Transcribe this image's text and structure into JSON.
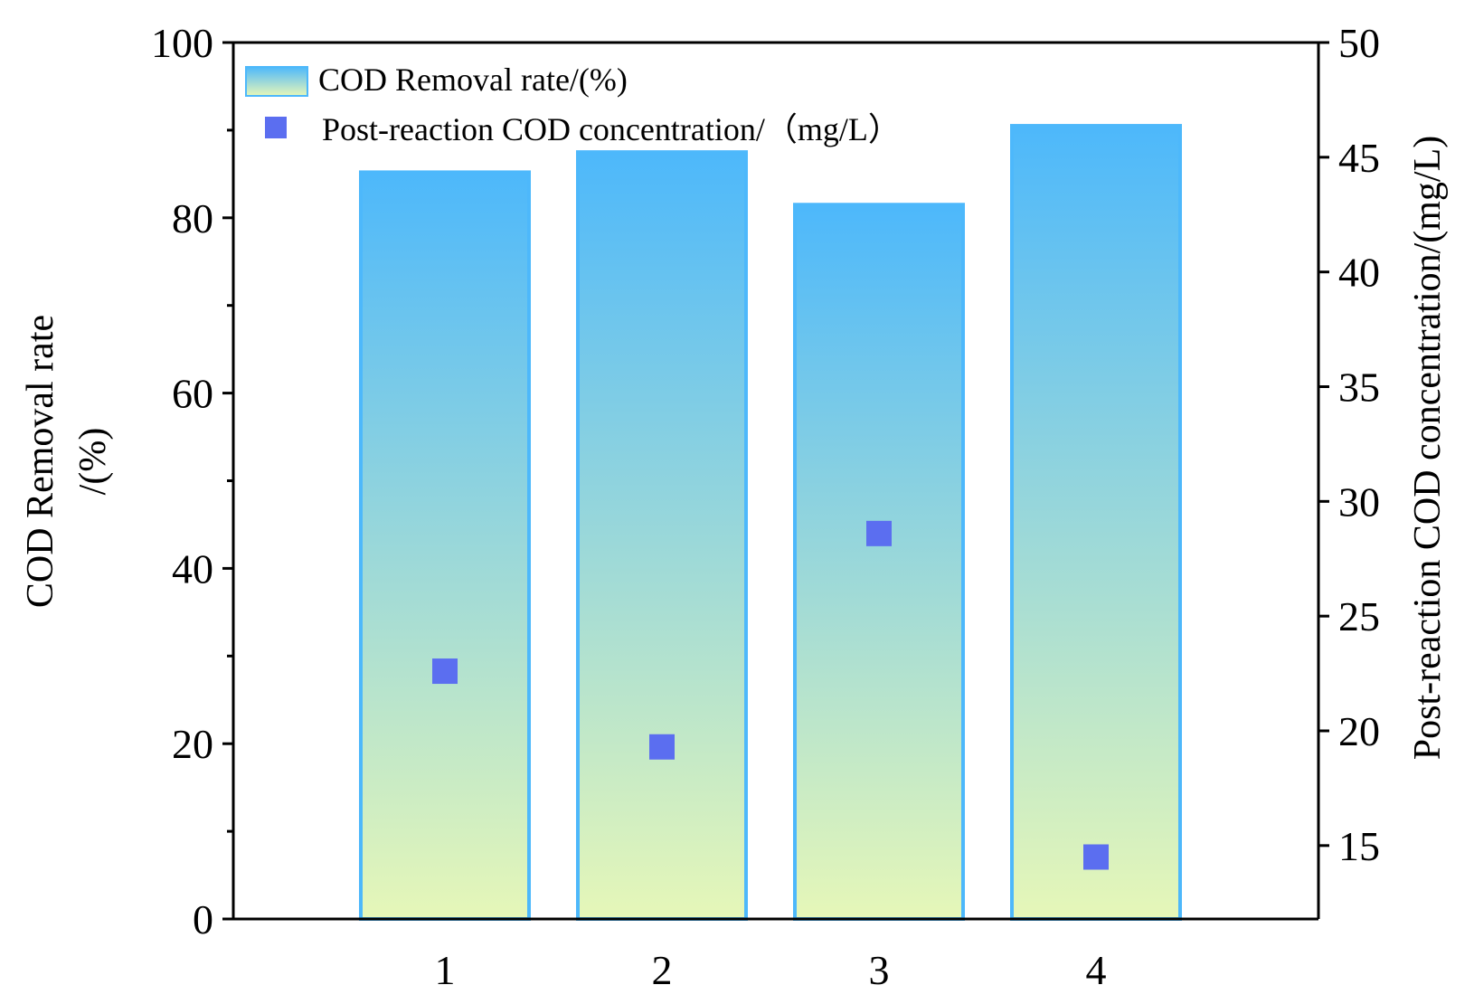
{
  "chart_data": {
    "type": "bar",
    "categories": [
      "1",
      "2",
      "3",
      "4"
    ],
    "series": [
      {
        "name": "COD Removal rate/(%)",
        "kind": "bar",
        "axis": "left",
        "values": [
          85.2,
          87.5,
          81.5,
          90.5
        ]
      },
      {
        "name": "Post-reaction COD concentration/（mg/L）",
        "kind": "scatter",
        "axis": "right",
        "values": [
          22.6,
          19.3,
          28.6,
          14.5
        ]
      }
    ],
    "title": "",
    "xlabel": "",
    "ylabel_left_lines": [
      "COD Removal rate",
      "/(%)"
    ],
    "ylabel_right": "Post-reaction COD concentration/(mg/L)",
    "ylim_left": [
      0,
      100
    ],
    "ylim_right": [
      11.8,
      50
    ],
    "yticks_left": [
      "0",
      "20",
      "40",
      "60",
      "80",
      "100"
    ],
    "yticks_right": [
      "15",
      "20",
      "25",
      "30",
      "35",
      "40",
      "45",
      "50"
    ],
    "legend_position": "top-left",
    "grid": false,
    "colors": {
      "bar_top": "#4db8fb",
      "bar_bottom": "#e6f7b8",
      "bar_edge": "#4db8fb",
      "marker": "#5b6ef0",
      "axis": "#000000"
    }
  }
}
